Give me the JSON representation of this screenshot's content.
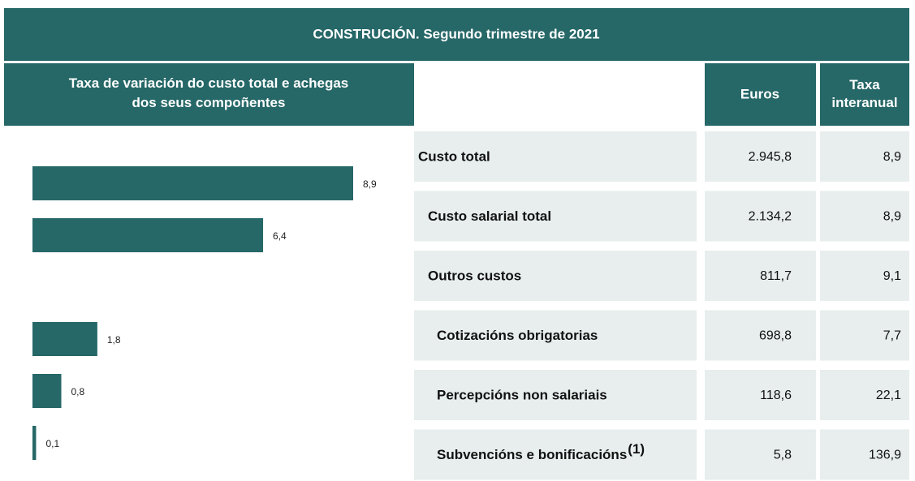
{
  "header": {
    "title": "CONSTRUCIÓN. Segundo trimestre de 2021"
  },
  "chart_data": {
    "type": "bar",
    "orientation": "horizontal",
    "title": "Taxa de variación do custo total e achegas dos seus compoñentes",
    "values": [
      8.9,
      6.4,
      null,
      1.8,
      0.8,
      0.1
    ],
    "value_labels": [
      "8,9",
      "6,4",
      null,
      "1,8",
      "0,8",
      "0,1"
    ],
    "color": "#266767"
  },
  "table": {
    "columns": [
      "Euros",
      "Taxa interanual"
    ],
    "rows": [
      {
        "label": "Custo total",
        "cells": [
          "2.945,8",
          "8,9"
        ]
      },
      {
        "label": "Custo salarial total",
        "cells": [
          "2.134,2",
          "8,9"
        ]
      },
      {
        "label": "Outros custos",
        "cells": [
          "811,7",
          "9,1"
        ]
      },
      {
        "label": "Cotizacións obrigatorias",
        "cells": [
          "698,8",
          "7,7"
        ]
      },
      {
        "label": "Percepcións non salariais",
        "cells": [
          "118,6",
          "22,1"
        ]
      },
      {
        "label": "Subvencións e bonificacións",
        "note": "(1)",
        "cells": [
          "5,8",
          "136,9"
        ]
      }
    ]
  }
}
